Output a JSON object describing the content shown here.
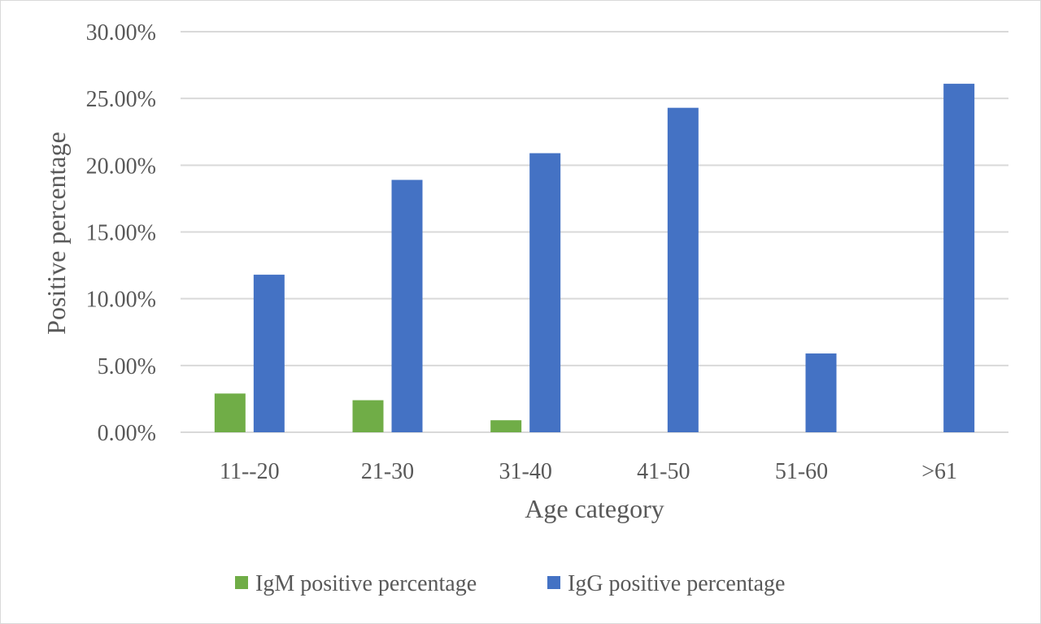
{
  "chart_data": {
    "type": "bar",
    "title": "",
    "xlabel": "Age category",
    "ylabel": "Positive percentage",
    "categories": [
      "11--20",
      "21-30",
      "31-40",
      "41-50",
      "51-60",
      ">61"
    ],
    "series": [
      {
        "name": "IgM positive percentage",
        "color": "#70ad47",
        "values": [
          2.9,
          2.4,
          0.9,
          0,
          0,
          0
        ]
      },
      {
        "name": "IgG positive percentage",
        "color": "#4472c4",
        "values": [
          11.8,
          18.9,
          20.9,
          24.3,
          5.9,
          26.1
        ]
      }
    ],
    "ylim": [
      0,
      30
    ],
    "yticks": [
      "0.00%",
      "5.00%",
      "10.00%",
      "15.00%",
      "20.00%",
      "25.00%",
      "30.00%"
    ],
    "grid": true,
    "gridline_color": "#d9d9d9",
    "legend_position": "bottom"
  }
}
